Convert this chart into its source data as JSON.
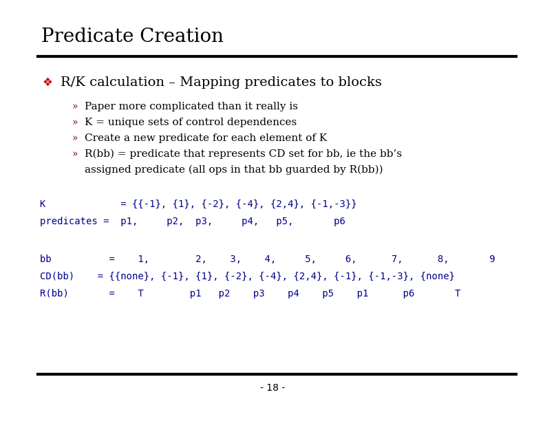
{
  "title": "Predicate Creation",
  "title_color": "#000000",
  "title_fontsize": 20,
  "title_font": "serif",
  "bg_color": "#ffffff",
  "line_color": "#000000",
  "bullet_color": "#cc0000",
  "bullet_symbol": "❖",
  "main_bullet_text": "R/K calculation – Mapping predicates to blocks",
  "main_bullet_color": "#000000",
  "main_bullet_fontsize": 14,
  "sub_bullet_color": "#800000",
  "sub_bullet_symbol": "»",
  "sub_text_fontsize": 11,
  "sub_text_color": "#000000",
  "sub_bullets": [
    {
      "text": "Paper more complicated than it really is"
    },
    {
      "text": "K = unique sets of control dependences"
    },
    {
      "text": "Create a new predicate for each element of K"
    },
    {
      "text": "R(bb) = predicate that represents CD set for bb, ie the bb’s"
    },
    {
      "text": "assigned predicate (all ops in that bb guarded by R(bb))"
    }
  ],
  "code_color": "#00008b",
  "code_fontsize": 10,
  "code_font": "monospace",
  "code_lines": [
    "K             = {{-1}, {1}, {-2}, {-4}, {2,4}, {-1,-3}}",
    "predicates =  p1,     p2,  p3,     p4,   p5,       p6"
  ],
  "code_lines2": [
    "bb          =    1,        2,    3,    4,     5,     6,      7,      8,       9",
    "CD(bb)    = {{none}, {-1}, {1}, {-2}, {-4}, {2,4}, {-1}, {-1,-3}, {none}",
    "R(bb)       =    T        p1   p2    p3    p4    p5    p1      p6       T"
  ],
  "footer_text": "- 18 -",
  "footer_fontsize": 10,
  "footer_color": "#000000"
}
